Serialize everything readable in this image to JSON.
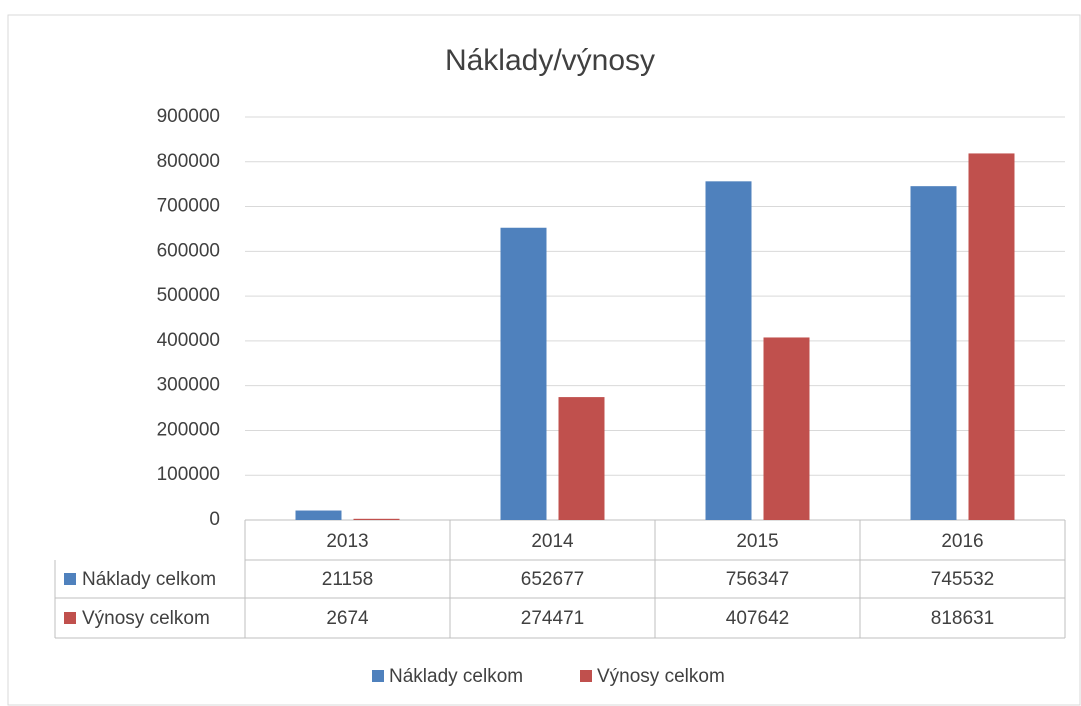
{
  "chart_data": {
    "type": "bar",
    "title": "Náklady/výnosy",
    "categories": [
      "2013",
      "2014",
      "2015",
      "2016"
    ],
    "series": [
      {
        "name": "Náklady celkom",
        "color": "#4f81bd",
        "values": [
          21158,
          652677,
          756347,
          745532
        ]
      },
      {
        "name": "Výnosy celkom",
        "color": "#c0504d",
        "values": [
          2674,
          274471,
          407642,
          818631
        ]
      }
    ],
    "ylim": [
      0,
      900000
    ],
    "yticks": [
      0,
      100000,
      200000,
      300000,
      400000,
      500000,
      600000,
      700000,
      800000,
      900000
    ],
    "grid": true,
    "legend": "bottom"
  }
}
